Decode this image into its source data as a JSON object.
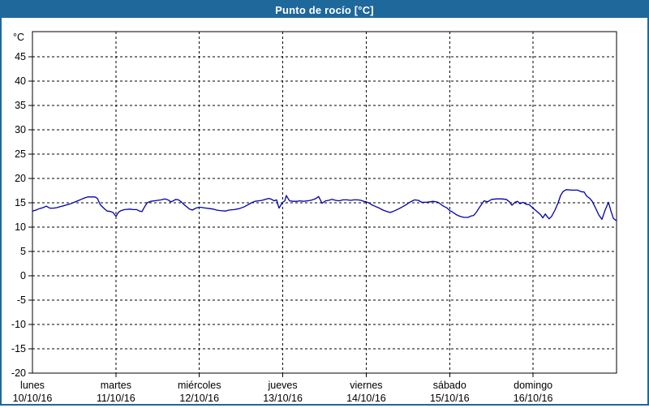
{
  "window": {
    "title": "Punto de rocío [°C]"
  },
  "colors": {
    "frame": "#1f689b",
    "titlebar_text": "#ffffff",
    "plot_background": "#ffffff",
    "grid": "#000000",
    "series_line": "#0000aa"
  },
  "chart_data": {
    "type": "line",
    "title": "Punto de rocío [°C]",
    "ylabel": "°C",
    "ylim": [
      -20,
      49
    ],
    "y_ticks": [
      45,
      40,
      35,
      30,
      25,
      20,
      15,
      10,
      5,
      0,
      -5,
      -10,
      -15,
      -20
    ],
    "grid": "dashed",
    "legend": "none",
    "x_unit": "hours",
    "x_range": [
      0,
      168
    ],
    "x_days": [
      {
        "name": "lunes",
        "date": "10/10/16"
      },
      {
        "name": "martes",
        "date": "11/10/16"
      },
      {
        "name": "miércoles",
        "date": "12/10/16"
      },
      {
        "name": "jueves",
        "date": "13/10/16"
      },
      {
        "name": "viernes",
        "date": "14/10/16"
      },
      {
        "name": "sábado",
        "date": "15/10/16"
      },
      {
        "name": "domingo",
        "date": "16/10/16"
      }
    ],
    "series": [
      {
        "name": "Punto de rocío",
        "color": "#0000aa",
        "points": [
          [
            0,
            13.3
          ],
          [
            1,
            13.5
          ],
          [
            2,
            13.8
          ],
          [
            3,
            14.0
          ],
          [
            4,
            14.3
          ],
          [
            5,
            13.9
          ],
          [
            6,
            13.9
          ],
          [
            7,
            14.0
          ],
          [
            8,
            14.2
          ],
          [
            9,
            14.4
          ],
          [
            10,
            14.6
          ],
          [
            11,
            14.8
          ],
          [
            12,
            15.1
          ],
          [
            13,
            15.4
          ],
          [
            14,
            15.7
          ],
          [
            15,
            16.0
          ],
          [
            16,
            16.2
          ],
          [
            17,
            16.2
          ],
          [
            18,
            16.2
          ],
          [
            18.7,
            15.9
          ],
          [
            19.5,
            14.6
          ],
          [
            20.5,
            13.9
          ],
          [
            21.5,
            13.3
          ],
          [
            22.5,
            13.2
          ],
          [
            23.2,
            13.0
          ],
          [
            24,
            12.2
          ],
          [
            24.8,
            13.1
          ],
          [
            25.5,
            13.4
          ],
          [
            26.5,
            13.6
          ],
          [
            28,
            13.7
          ],
          [
            29,
            13.6
          ],
          [
            30,
            13.6
          ],
          [
            30.8,
            13.3
          ],
          [
            31.5,
            13.2
          ],
          [
            32.2,
            14.1
          ],
          [
            33,
            15.0
          ],
          [
            34,
            15.3
          ],
          [
            35,
            15.4
          ],
          [
            36,
            15.5
          ],
          [
            37,
            15.6
          ],
          [
            38,
            15.8
          ],
          [
            39,
            15.6
          ],
          [
            39.8,
            15.2
          ],
          [
            40.5,
            15.4
          ],
          [
            41.2,
            15.7
          ],
          [
            42,
            15.6
          ],
          [
            42.8,
            15.2
          ],
          [
            43.5,
            14.7
          ],
          [
            44.3,
            14.2
          ],
          [
            45.2,
            13.7
          ],
          [
            46,
            13.5
          ],
          [
            47,
            13.9
          ],
          [
            48,
            14.1
          ],
          [
            49,
            14.0
          ],
          [
            50,
            13.9
          ],
          [
            51,
            13.8
          ],
          [
            52,
            13.7
          ],
          [
            53,
            13.5
          ],
          [
            54,
            13.4
          ],
          [
            55.5,
            13.3
          ],
          [
            56.5,
            13.5
          ],
          [
            58,
            13.6
          ],
          [
            59.5,
            13.8
          ],
          [
            61,
            14.2
          ],
          [
            62,
            14.6
          ],
          [
            63,
            15.0
          ],
          [
            64,
            15.3
          ],
          [
            65,
            15.4
          ],
          [
            66,
            15.5
          ],
          [
            67,
            15.7
          ],
          [
            68,
            15.9
          ],
          [
            68.8,
            15.7
          ],
          [
            69.5,
            15.4
          ],
          [
            70.2,
            15.6
          ],
          [
            70.9,
            13.9
          ],
          [
            71.5,
            14.6
          ],
          [
            72,
            15.1
          ],
          [
            72.6,
            15.4
          ],
          [
            73,
            16.5
          ],
          [
            73.5,
            15.9
          ],
          [
            74,
            15.4
          ],
          [
            75,
            15.3
          ],
          [
            76,
            15.3
          ],
          [
            77,
            15.4
          ],
          [
            78,
            15.3
          ],
          [
            79,
            15.4
          ],
          [
            80,
            15.5
          ],
          [
            81,
            15.7
          ],
          [
            81.8,
            16.0
          ],
          [
            82.3,
            16.3
          ],
          [
            83.3,
            14.9
          ],
          [
            84.3,
            15.4
          ],
          [
            85.2,
            15.5
          ],
          [
            86.2,
            15.7
          ],
          [
            87.2,
            15.5
          ],
          [
            88.2,
            15.4
          ],
          [
            89.3,
            15.6
          ],
          [
            90.5,
            15.6
          ],
          [
            91.5,
            15.5
          ],
          [
            92.5,
            15.6
          ],
          [
            93.5,
            15.6
          ],
          [
            94.5,
            15.5
          ],
          [
            95.3,
            15.3
          ],
          [
            96,
            15.2
          ],
          [
            97,
            14.9
          ],
          [
            97.5,
            14.6
          ],
          [
            98.5,
            14.3
          ],
          [
            99.8,
            13.9
          ],
          [
            100.8,
            13.5
          ],
          [
            102,
            13.2
          ],
          [
            102.9,
            13.0
          ],
          [
            104,
            13.3
          ],
          [
            105.5,
            13.8
          ],
          [
            107,
            14.4
          ],
          [
            108.5,
            15.1
          ],
          [
            109.9,
            15.6
          ],
          [
            111,
            15.5
          ],
          [
            112,
            15.1
          ],
          [
            113.4,
            15.1
          ],
          [
            114.3,
            15.2
          ],
          [
            115.3,
            15.3
          ],
          [
            116,
            15.2
          ],
          [
            116.7,
            15.1
          ],
          [
            118,
            14.4
          ],
          [
            119.3,
            13.9
          ],
          [
            120,
            13.4
          ],
          [
            120.6,
            13.2
          ],
          [
            121.8,
            12.6
          ],
          [
            123,
            12.2
          ],
          [
            124.1,
            12.0
          ],
          [
            125.3,
            12.0
          ],
          [
            126.2,
            12.3
          ],
          [
            126.9,
            12.4
          ],
          [
            127.6,
            13.0
          ],
          [
            128.8,
            14.3
          ],
          [
            129.9,
            15.4
          ],
          [
            130.9,
            15.2
          ],
          [
            132.1,
            15.7
          ],
          [
            133.5,
            15.8
          ],
          [
            134.9,
            15.8
          ],
          [
            136.3,
            15.7
          ],
          [
            137.2,
            15.2
          ],
          [
            137.9,
            14.5
          ],
          [
            138.8,
            15.1
          ],
          [
            139.5,
            15.3
          ],
          [
            140.2,
            14.8
          ],
          [
            141.1,
            15.1
          ],
          [
            142,
            14.7
          ],
          [
            142.9,
            14.6
          ],
          [
            144,
            13.9
          ],
          [
            145.1,
            13.2
          ],
          [
            146.1,
            12.6
          ],
          [
            146.8,
            11.9
          ],
          [
            147.5,
            12.7
          ],
          [
            147.9,
            12.3
          ],
          [
            148.6,
            11.7
          ],
          [
            149.3,
            12.2
          ],
          [
            150.3,
            13.5
          ],
          [
            151.2,
            15.0
          ],
          [
            151.9,
            16.5
          ],
          [
            152.6,
            17.3
          ],
          [
            153.5,
            17.7
          ],
          [
            155.2,
            17.6
          ],
          [
            156.8,
            17.6
          ],
          [
            157.7,
            17.3
          ],
          [
            158.7,
            17.2
          ],
          [
            159.4,
            16.4
          ],
          [
            160.3,
            15.9
          ],
          [
            161,
            15.3
          ],
          [
            161.9,
            14.0
          ],
          [
            162.9,
            12.5
          ],
          [
            163.8,
            11.6
          ],
          [
            164.7,
            13.5
          ],
          [
            165.7,
            15.1
          ],
          [
            166.4,
            13.3
          ],
          [
            167.1,
            11.8
          ],
          [
            167.8,
            11.4
          ],
          [
            168,
            11.4
          ]
        ]
      }
    ]
  }
}
